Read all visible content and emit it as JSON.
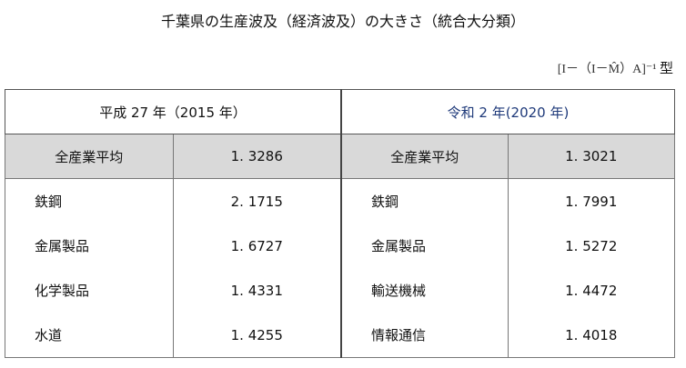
{
  "title": "千葉県の生産波及（経済波及）の大きさ（統合大分類）",
  "formula": "[I－（I－M̂）A]⁻¹",
  "formula_suffix": "型",
  "periods": [
    {
      "label": "平成 27 年（2015 年）",
      "average": {
        "label": "全産業平均",
        "value": "1. 3286"
      },
      "rows": [
        {
          "label": "鉄鋼",
          "value": "2. 1715"
        },
        {
          "label": "金属製品",
          "value": "1. 6727"
        },
        {
          "label": "化学製品",
          "value": "1. 4331"
        },
        {
          "label": "水道",
          "value": "1. 4255"
        }
      ]
    },
    {
      "label": "令和 2 年(2020 年)",
      "average": {
        "label": "全産業平均",
        "value": "1. 3021"
      },
      "rows": [
        {
          "label": "鉄鋼",
          "value": "1. 7991"
        },
        {
          "label": "金属製品",
          "value": "1. 5272"
        },
        {
          "label": "輸送機械",
          "value": "1. 4472"
        },
        {
          "label": "情報通信",
          "value": "1. 4018"
        }
      ]
    }
  ],
  "colors": {
    "header_2020": "#1f3a7a",
    "average_row_bg": "#d9d9d9"
  }
}
